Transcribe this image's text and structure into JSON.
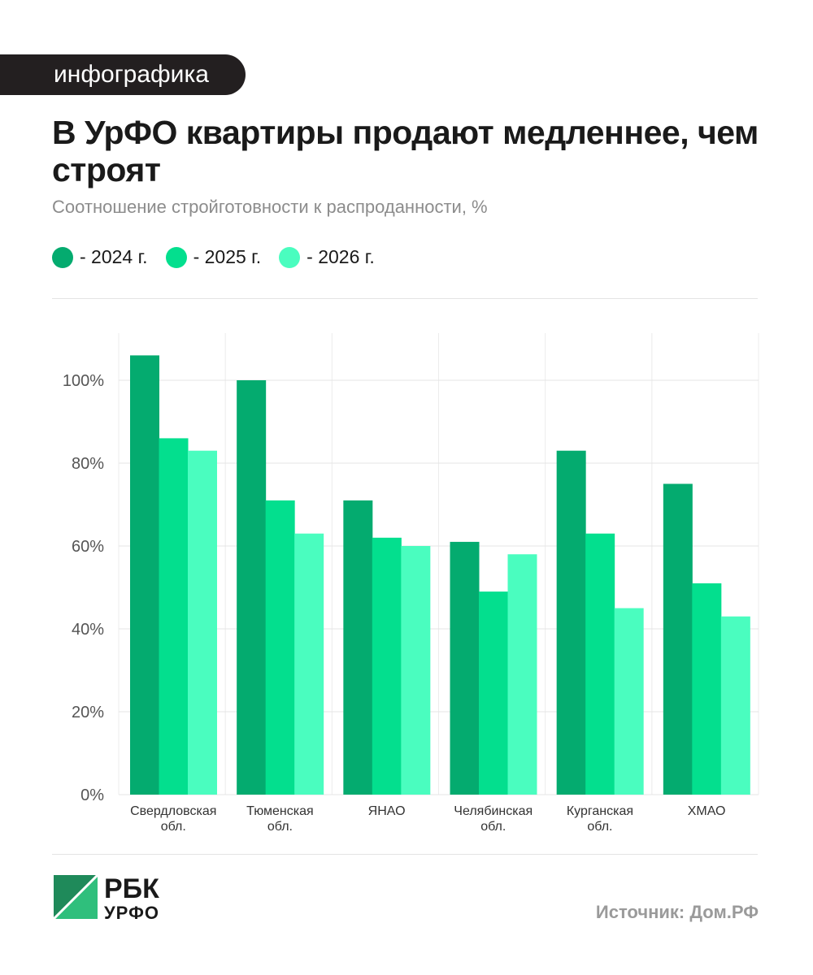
{
  "tag": "инфографика",
  "title": "В УрФО квартиры продают медленнее, чем строят",
  "subtitle": "Соотношение стройготовности к распроданности, %",
  "legend": [
    {
      "label": "- 2024 г.",
      "color": "#04ab6f"
    },
    {
      "label": "- 2025 г.",
      "color": "#03df8e"
    },
    {
      "label": "- 2026 г.",
      "color": "#4afdbf"
    }
  ],
  "chart_data": {
    "type": "bar",
    "categories": [
      [
        "Свердловская",
        "обл."
      ],
      [
        "Тюменская",
        "обл."
      ],
      [
        "ЯНАО"
      ],
      [
        "Челябинская",
        "обл."
      ],
      [
        "Курганская",
        "обл."
      ],
      [
        "ХМАО"
      ]
    ],
    "series": [
      {
        "name": "- 2024 г.",
        "color": "#04ab6f",
        "values": [
          106,
          100,
          71,
          61,
          83,
          75
        ]
      },
      {
        "name": "- 2025 г.",
        "color": "#03df8e",
        "values": [
          86,
          71,
          62,
          49,
          63,
          51
        ]
      },
      {
        "name": "- 2026 г.",
        "color": "#4afdbf",
        "values": [
          83,
          63,
          60,
          58,
          45,
          43
        ]
      }
    ],
    "yticks": [
      "0%",
      "20%",
      "40%",
      "60%",
      "80%",
      "100%"
    ],
    "ylim": [
      0,
      110
    ],
    "grid": true,
    "legend_position": "top-left"
  },
  "logo": {
    "line1": "РБК",
    "line2": "УРФО"
  },
  "source": "Источник: Дом.РФ"
}
